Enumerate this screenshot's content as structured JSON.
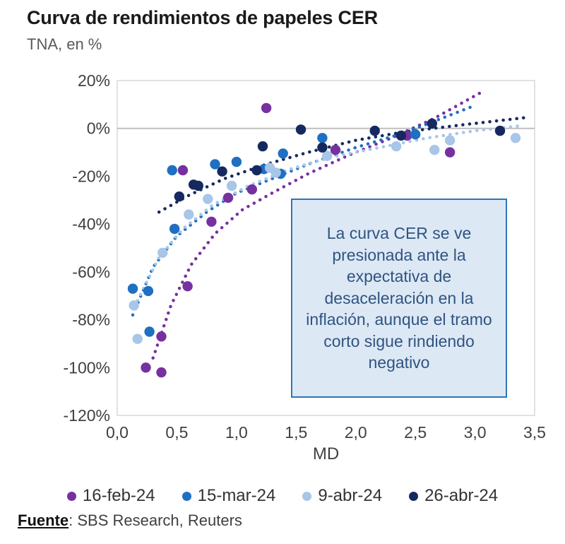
{
  "title": "Curva de rendimientos de papeles CER",
  "subtitle": "TNA, en %",
  "annotation": {
    "text": "La curva CER se ve presionada ante la expectativa de desaceleración en la inflación, aunque el tramo corto sigue rindiendo negativo",
    "fill_color": "#dde8f5",
    "border_color": "#2e75b6",
    "text_color": "#2f5480"
  },
  "source": {
    "label": "Fuente",
    "text": ": SBS Research, Reuters"
  },
  "chart_data": {
    "type": "scatter",
    "title": "Curva de rendimientos de papeles CER",
    "subtitle": "TNA, en %",
    "xlabel": "MD",
    "ylabel": "TNA, en %",
    "xlim": [
      0,
      3.5
    ],
    "ylim": [
      -120,
      20
    ],
    "x_ticks": [
      "0,0",
      "0,5",
      "1,0",
      "1,5",
      "2,0",
      "2,5",
      "3,0",
      "3,5"
    ],
    "x_tick_values": [
      0,
      0.5,
      1.0,
      1.5,
      2.0,
      2.5,
      3.0,
      3.5
    ],
    "y_ticks": [
      "20%",
      "0%",
      "-20%",
      "-40%",
      "-60%",
      "-80%",
      "-100%",
      "-120%"
    ],
    "y_tick_values": [
      20,
      0,
      -20,
      -40,
      -60,
      -80,
      -100,
      -120
    ],
    "gridline_at": 0,
    "grid": "zero-line-only",
    "legend_position": "bottom",
    "frame_color": "#d9d9d9",
    "zero_line_color": "#bfbfbf",
    "tick_label_color": "#404040",
    "series": [
      {
        "name": "16-feb-24",
        "color": "#7730a0",
        "points": [
          [
            0.24,
            -100
          ],
          [
            0.37,
            -102
          ],
          [
            0.37,
            -87
          ],
          [
            0.55,
            -17.5
          ],
          [
            0.59,
            -66
          ],
          [
            0.79,
            -39
          ],
          [
            0.93,
            -29
          ],
          [
            1.13,
            -25.5
          ],
          [
            1.25,
            8.5
          ],
          [
            1.83,
            -9
          ],
          [
            2.43,
            -3
          ],
          [
            2.79,
            -10
          ]
        ],
        "trend": [
          [
            0.3,
            -96
          ],
          [
            0.45,
            -74
          ],
          [
            0.62,
            -57
          ],
          [
            0.82,
            -44
          ],
          [
            1.05,
            -34
          ],
          [
            1.3,
            -27
          ],
          [
            1.6,
            -19
          ],
          [
            1.95,
            -11
          ],
          [
            2.3,
            -4
          ],
          [
            2.65,
            4
          ],
          [
            3.05,
            15
          ]
        ]
      },
      {
        "name": "15-mar-24",
        "color": "#1f6fc2",
        "points": [
          [
            0.13,
            -67
          ],
          [
            0.26,
            -68
          ],
          [
            0.27,
            -85
          ],
          [
            0.46,
            -17.5
          ],
          [
            0.48,
            -42
          ],
          [
            0.82,
            -15
          ],
          [
            1.0,
            -14
          ],
          [
            1.23,
            -17
          ],
          [
            1.37,
            -19
          ],
          [
            1.39,
            -10.5
          ],
          [
            1.72,
            -4
          ],
          [
            2.5,
            -2.5
          ]
        ],
        "trend": [
          [
            0.13,
            -78
          ],
          [
            0.3,
            -58
          ],
          [
            0.5,
            -45
          ],
          [
            0.75,
            -35
          ],
          [
            1.0,
            -27
          ],
          [
            1.3,
            -21
          ],
          [
            1.6,
            -15
          ],
          [
            2.0,
            -8
          ],
          [
            2.4,
            -2
          ],
          [
            2.97,
            9
          ]
        ]
      },
      {
        "name": "9-abr-24",
        "color": "#a7c6e8",
        "points": [
          [
            0.14,
            -74
          ],
          [
            0.17,
            -88
          ],
          [
            0.38,
            -52
          ],
          [
            0.6,
            -36
          ],
          [
            0.76,
            -29.5
          ],
          [
            0.96,
            -24
          ],
          [
            1.28,
            -16.5
          ],
          [
            1.33,
            -18.5
          ],
          [
            1.76,
            -11.5
          ],
          [
            2.34,
            -7.5
          ],
          [
            2.66,
            -9
          ],
          [
            2.79,
            -5
          ],
          [
            3.34,
            -4
          ]
        ],
        "trend": [
          [
            0.17,
            -72
          ],
          [
            0.35,
            -54
          ],
          [
            0.55,
            -42
          ],
          [
            0.8,
            -32
          ],
          [
            1.1,
            -24
          ],
          [
            1.45,
            -17
          ],
          [
            1.8,
            -12
          ],
          [
            2.2,
            -8
          ],
          [
            2.6,
            -4
          ],
          [
            3.0,
            -1
          ],
          [
            3.37,
            1
          ]
        ]
      },
      {
        "name": "26-abr-24",
        "color": "#16295f",
        "points": [
          [
            0.52,
            -28.5
          ],
          [
            0.64,
            -23.5
          ],
          [
            0.68,
            -24
          ],
          [
            0.88,
            -18
          ],
          [
            1.17,
            -17.5
          ],
          [
            1.22,
            -7.5
          ],
          [
            1.54,
            -0.5
          ],
          [
            1.72,
            -8
          ],
          [
            2.16,
            -1
          ],
          [
            2.38,
            -3
          ],
          [
            2.64,
            2
          ],
          [
            3.21,
            -1
          ]
        ],
        "trend": [
          [
            0.35,
            -35
          ],
          [
            0.6,
            -28
          ],
          [
            0.9,
            -21
          ],
          [
            1.25,
            -15
          ],
          [
            1.6,
            -10
          ],
          [
            2.0,
            -5
          ],
          [
            2.4,
            -1.5
          ],
          [
            2.9,
            1.5
          ],
          [
            3.42,
            4.5
          ]
        ]
      }
    ]
  }
}
